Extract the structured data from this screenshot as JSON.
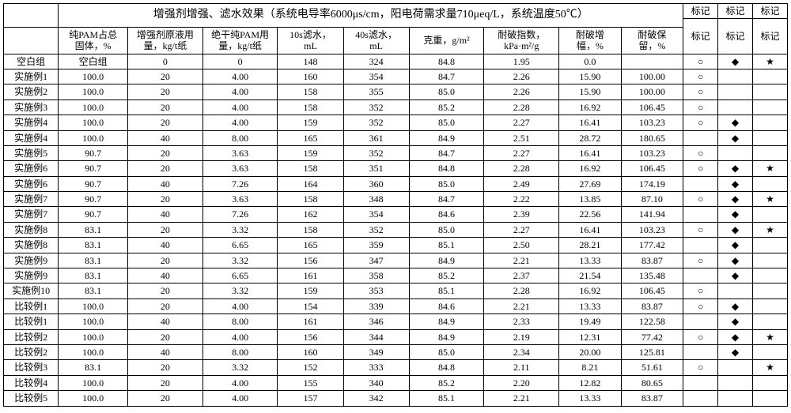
{
  "title": "增强剂增强、滤水效果（系统电导率6000μs/cm，阳电荷需求量710μeq/L，系统温度50℃）",
  "mark_top": [
    "标记",
    "标记",
    "标记"
  ],
  "headers": {
    "label": "",
    "a1": "纯PAM占总",
    "a2": "固体，%",
    "b1": "增强剂原液用",
    "b2": "量，kg/t纸",
    "c1": "绝干纯PAM用",
    "c2": "量，kg/t纸",
    "d1": "10s滤水，",
    "d2": "mL",
    "e1": "40s滤水，",
    "e2": "mL",
    "f1": "克重，g/m²",
    "f2": "",
    "g1": "耐破指数，",
    "g2": "kPa·m²/g",
    "h1": "耐破增",
    "h2": "幅，%",
    "i1": "耐破保",
    "i2": "留，%",
    "m": [
      "标记",
      "标记",
      "标记"
    ]
  },
  "rows": [
    {
      "label": "空白组",
      "a": "空白组",
      "b": "0",
      "c": "0",
      "d": "148",
      "e": "324",
      "f": "84.8",
      "g": "1.95",
      "h": "0.0",
      "i": "",
      "m": [
        "○",
        "◆",
        "★"
      ]
    },
    {
      "label": "实施例1",
      "a": "100.0",
      "b": "20",
      "c": "4.00",
      "d": "160",
      "e": "354",
      "f": "84.7",
      "g": "2.26",
      "h": "15.90",
      "i": "100.00",
      "m": [
        "○",
        "",
        ""
      ]
    },
    {
      "label": "实施例2",
      "a": "100.0",
      "b": "20",
      "c": "4.00",
      "d": "158",
      "e": "355",
      "f": "85.0",
      "g": "2.26",
      "h": "15.90",
      "i": "100.00",
      "m": [
        "○",
        "",
        ""
      ]
    },
    {
      "label": "实施例3",
      "a": "100.0",
      "b": "20",
      "c": "4.00",
      "d": "158",
      "e": "352",
      "f": "85.2",
      "g": "2.28",
      "h": "16.92",
      "i": "106.45",
      "m": [
        "○",
        "",
        ""
      ]
    },
    {
      "label": "实施例4",
      "a": "100.0",
      "b": "20",
      "c": "4.00",
      "d": "159",
      "e": "352",
      "f": "85.0",
      "g": "2.27",
      "h": "16.41",
      "i": "103.23",
      "m": [
        "○",
        "◆",
        ""
      ]
    },
    {
      "label": "实施例4",
      "a": "100.0",
      "b": "40",
      "c": "8.00",
      "d": "165",
      "e": "361",
      "f": "84.9",
      "g": "2.51",
      "h": "28.72",
      "i": "180.65",
      "m": [
        "",
        "◆",
        ""
      ]
    },
    {
      "label": "实施例5",
      "a": "90.7",
      "b": "20",
      "c": "3.63",
      "d": "159",
      "e": "352",
      "f": "84.7",
      "g": "2.27",
      "h": "16.41",
      "i": "103.23",
      "m": [
        "○",
        "",
        ""
      ]
    },
    {
      "label": "实施例6",
      "a": "90.7",
      "b": "20",
      "c": "3.63",
      "d": "158",
      "e": "351",
      "f": "84.8",
      "g": "2.28",
      "h": "16.92",
      "i": "106.45",
      "m": [
        "○",
        "◆",
        "★"
      ]
    },
    {
      "label": "实施例6",
      "a": "90.7",
      "b": "40",
      "c": "7.26",
      "d": "164",
      "e": "360",
      "f": "85.0",
      "g": "2.49",
      "h": "27.69",
      "i": "174.19",
      "m": [
        "",
        "◆",
        ""
      ]
    },
    {
      "label": "实施例7",
      "a": "90.7",
      "b": "20",
      "c": "3.63",
      "d": "158",
      "e": "348",
      "f": "84.7",
      "g": "2.22",
      "h": "13.85",
      "i": "87.10",
      "m": [
        "○",
        "◆",
        "★"
      ]
    },
    {
      "label": "实施例7",
      "a": "90.7",
      "b": "40",
      "c": "7.26",
      "d": "162",
      "e": "354",
      "f": "84.6",
      "g": "2.39",
      "h": "22.56",
      "i": "141.94",
      "m": [
        "",
        "◆",
        ""
      ]
    },
    {
      "label": "实施例8",
      "a": "83.1",
      "b": "20",
      "c": "3.32",
      "d": "158",
      "e": "352",
      "f": "85.0",
      "g": "2.27",
      "h": "16.41",
      "i": "103.23",
      "m": [
        "○",
        "◆",
        "★"
      ]
    },
    {
      "label": "实施例8",
      "a": "83.1",
      "b": "40",
      "c": "6.65",
      "d": "165",
      "e": "359",
      "f": "85.1",
      "g": "2.50",
      "h": "28.21",
      "i": "177.42",
      "m": [
        "",
        "◆",
        ""
      ]
    },
    {
      "label": "实施例9",
      "a": "83.1",
      "b": "20",
      "c": "3.32",
      "d": "156",
      "e": "347",
      "f": "84.9",
      "g": "2.21",
      "h": "13.33",
      "i": "83.87",
      "m": [
        "○",
        "◆",
        ""
      ]
    },
    {
      "label": "实施例9",
      "a": "83.1",
      "b": "40",
      "c": "6.65",
      "d": "161",
      "e": "358",
      "f": "85.2",
      "g": "2.37",
      "h": "21.54",
      "i": "135.48",
      "m": [
        "",
        "◆",
        ""
      ]
    },
    {
      "label": "实施例10",
      "a": "83.1",
      "b": "20",
      "c": "3.32",
      "d": "159",
      "e": "353",
      "f": "85.1",
      "g": "2.28",
      "h": "16.92",
      "i": "106.45",
      "m": [
        "○",
        "",
        ""
      ]
    },
    {
      "label": "比较例1",
      "a": "100.0",
      "b": "20",
      "c": "4.00",
      "d": "154",
      "e": "339",
      "f": "84.6",
      "g": "2.21",
      "h": "13.33",
      "i": "83.87",
      "m": [
        "○",
        "◆",
        ""
      ]
    },
    {
      "label": "比较例1",
      "a": "100.0",
      "b": "40",
      "c": "8.00",
      "d": "161",
      "e": "346",
      "f": "84.9",
      "g": "2.33",
      "h": "19.49",
      "i": "122.58",
      "m": [
        "",
        "◆",
        ""
      ]
    },
    {
      "label": "比较例2",
      "a": "100.0",
      "b": "20",
      "c": "4.00",
      "d": "156",
      "e": "344",
      "f": "84.9",
      "g": "2.19",
      "h": "12.31",
      "i": "77.42",
      "m": [
        "○",
        "◆",
        "★"
      ]
    },
    {
      "label": "比较例2",
      "a": "100.0",
      "b": "40",
      "c": "8.00",
      "d": "160",
      "e": "349",
      "f": "85.0",
      "g": "2.34",
      "h": "20.00",
      "i": "125.81",
      "m": [
        "",
        "◆",
        ""
      ]
    },
    {
      "label": "比较例3",
      "a": "83.1",
      "b": "20",
      "c": "3.32",
      "d": "152",
      "e": "333",
      "f": "84.8",
      "g": "2.11",
      "h": "8.21",
      "i": "51.61",
      "m": [
        "○",
        "",
        "★"
      ]
    },
    {
      "label": "比较例4",
      "a": "100.0",
      "b": "20",
      "c": "4.00",
      "d": "155",
      "e": "340",
      "f": "85.2",
      "g": "2.20",
      "h": "12.82",
      "i": "80.65",
      "m": [
        "",
        "",
        ""
      ]
    },
    {
      "label": "比较例5",
      "a": "100.0",
      "b": "20",
      "c": "4.00",
      "d": "157",
      "e": "342",
      "f": "85.1",
      "g": "2.21",
      "h": "13.33",
      "i": "83.87",
      "m": [
        "",
        "",
        ""
      ]
    }
  ]
}
